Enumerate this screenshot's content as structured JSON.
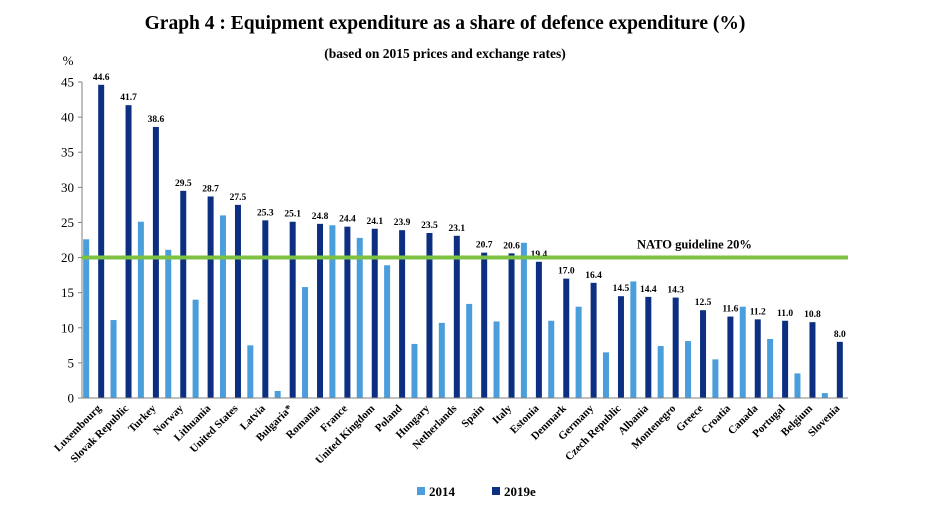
{
  "chart_data": {
    "type": "bar",
    "title": "Graph 4 : Equipment expenditure as a share of defence expenditure (%)",
    "subtitle": "(based on 2015 prices and exchange rates)",
    "ylabel": "%",
    "xlabel": "",
    "ylim": [
      0,
      45
    ],
    "yticks": [
      0,
      5,
      10,
      15,
      20,
      25,
      30,
      35,
      40,
      45
    ],
    "categories": [
      "Luxembourg",
      "Slovak Republic",
      "Turkey",
      "Norway",
      "Lithuania",
      "United States",
      "Latvia",
      "Bulgaria*",
      "Romania",
      "France",
      "United Kingdom",
      "Poland",
      "Hungary",
      "Netherlands",
      "Spain",
      "Italy",
      "Estonia",
      "Denmark",
      "Germany",
      "Czech Republic",
      "Albania",
      "Montenegro",
      "Greece",
      "Croatia",
      "Canada",
      "Portugal",
      "Belgium",
      "Slovenia"
    ],
    "series": [
      {
        "name": "2014",
        "color": "#4a9edb",
        "values": [
          22.6,
          11.1,
          25.1,
          21.1,
          14.0,
          26.0,
          7.5,
          1.0,
          15.8,
          24.6,
          22.8,
          18.9,
          7.7,
          10.7,
          13.4,
          10.9,
          22.1,
          11.0,
          13.0,
          6.5,
          16.6,
          7.4,
          8.1,
          5.5,
          13.0,
          8.4,
          3.5,
          0.7
        ]
      },
      {
        "name": "2019e",
        "color": "#0d2f82",
        "values": [
          44.6,
          41.7,
          38.6,
          29.5,
          28.7,
          27.5,
          25.3,
          25.1,
          24.8,
          24.4,
          24.1,
          23.9,
          23.5,
          23.1,
          20.7,
          20.6,
          19.4,
          17.0,
          16.4,
          14.5,
          14.4,
          14.3,
          12.5,
          11.6,
          11.2,
          11.0,
          10.8,
          8.0
        ]
      }
    ],
    "data_labels": [
      "44.6",
      "41.7",
      "38.6",
      "29.5",
      "28.7",
      "27.5",
      "25.3",
      "25.1",
      "24.8",
      "24.4",
      "24.1",
      "23.9",
      "23.5",
      "23.1",
      "20.7",
      "20.6",
      "19.4",
      "17.0",
      "16.4",
      "14.5",
      "14.4",
      "14.3",
      "12.5",
      "11.6",
      "11.2",
      "11.0",
      "10.8",
      "8.0"
    ],
    "guideline": {
      "label": "NATO guideline 20%",
      "value": 20,
      "color": "#7dc242"
    },
    "legend": {
      "position": "bottom-center",
      "entries": [
        "2014",
        "2019e"
      ]
    },
    "grid": false
  }
}
